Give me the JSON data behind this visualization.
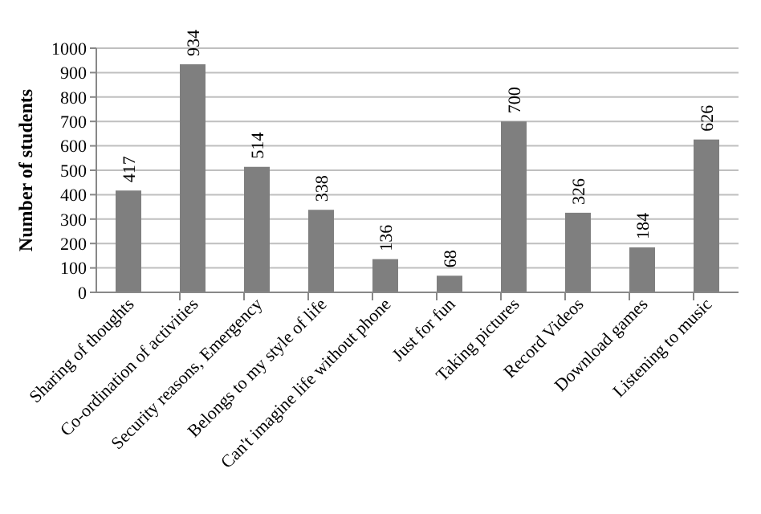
{
  "chart_data": {
    "type": "bar",
    "ylabel": "Number of students",
    "categories": [
      "Sharing of thoughts",
      "Co-ordination of activities",
      "Security reasons, Emergency",
      "Belongs to my style of life",
      "Can't imagine life without phone",
      "Just for fun",
      "Taking pictures",
      "Record Videos",
      "Download games",
      "Listening to music"
    ],
    "values": [
      417,
      934,
      514,
      338,
      136,
      68,
      700,
      326,
      184,
      626
    ],
    "color": "#7f7f7f",
    "ylim": [
      0,
      1000
    ],
    "yticks": [
      0,
      100,
      200,
      300,
      400,
      500,
      600,
      700,
      800,
      900,
      1000
    ],
    "grid": "y",
    "data_labels": true
  }
}
